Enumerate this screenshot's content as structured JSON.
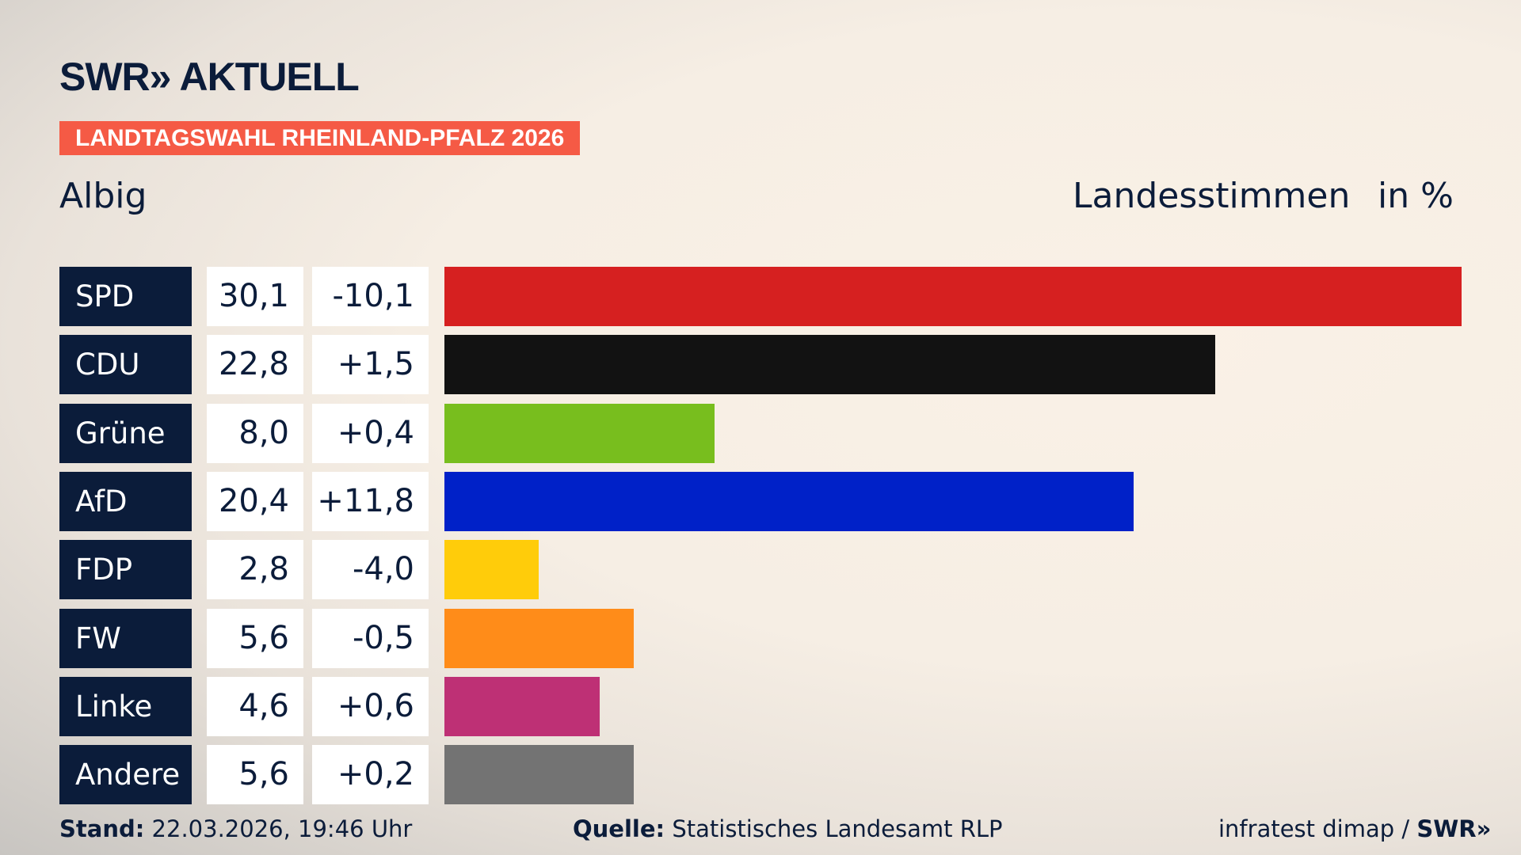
{
  "header": {
    "logo": "SWR» AKTUELL",
    "banner": "LANDTAGSWAHL RHEINLAND-PFALZ 2026",
    "place": "Albig",
    "measure": "Landesstimmen",
    "unit": "in %"
  },
  "chart_data": {
    "type": "bar",
    "orientation": "horizontal",
    "categories": [
      "SPD",
      "CDU",
      "Grüne",
      "AfD",
      "FDP",
      "FW",
      "Linke",
      "Andere"
    ],
    "values": [
      30.1,
      22.8,
      8.0,
      20.4,
      2.8,
      5.6,
      4.6,
      5.6
    ],
    "value_labels": [
      "30,1",
      "22,8",
      "8,0",
      "20,4",
      "2,8",
      "5,6",
      "4,6",
      "5,6"
    ],
    "change_labels": [
      "-10,1",
      "+1,5",
      "+0,4",
      "+11,8",
      "-4,0",
      "-0,5",
      "+0,6",
      "+0,2"
    ],
    "colors": [
      "#d62020",
      "#121212",
      "#78be1e",
      "#0021c8",
      "#ffcc0a",
      "#ff8c19",
      "#be3075",
      "#737373"
    ],
    "ylabel": "Landesstimmen",
    "unit": "in %"
  },
  "footer": {
    "stand_label": "Stand:",
    "stand": "22.03.2026, 19:46 Uhr",
    "source_label": "Quelle:",
    "source": "Statistisches Landesamt RLP",
    "credit": "infratest dimap / ",
    "credit_logo": "SWR»"
  }
}
